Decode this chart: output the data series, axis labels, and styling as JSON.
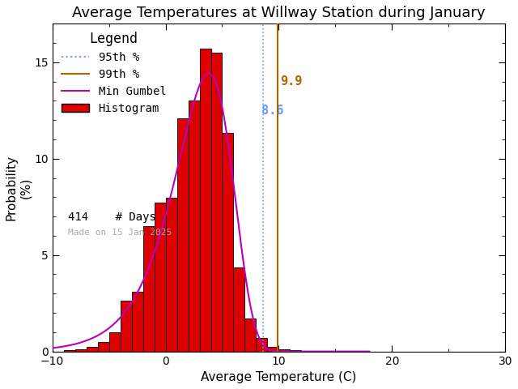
{
  "title": "Average Temperatures at Willway Station during January",
  "xlabel": "Average Temperature (C)",
  "ylabel": "Probability\n(%)",
  "xlim": [
    -10,
    30
  ],
  "ylim": [
    0,
    17
  ],
  "yticks": [
    0,
    5,
    10,
    15
  ],
  "xticks": [
    -10,
    0,
    10,
    20,
    30
  ],
  "bar_color": "#dd0000",
  "bar_edge_color": "#000000",
  "gumbel_color": "#bb00bb",
  "p95_value": 8.6,
  "p99_value": 9.9,
  "p95_color": "#6699ff",
  "p99_color": "#aa6600",
  "n_days": 414,
  "made_on": "Made on 15 Jan 2025",
  "bin_left_edges": [
    -9,
    -8,
    -7,
    -6,
    -5,
    -4,
    -3,
    -2,
    -1,
    0,
    1,
    2,
    3,
    4,
    5,
    6,
    7,
    8,
    9,
    10,
    11
  ],
  "bin_heights": [
    0.05,
    0.1,
    0.24,
    0.48,
    1.0,
    2.65,
    3.1,
    6.52,
    7.73,
    7.97,
    12.08,
    13.0,
    15.7,
    15.5,
    11.35,
    4.35,
    1.7,
    0.7,
    0.24,
    0.1,
    0.05
  ],
  "background_color": "#ffffff",
  "title_fontsize": 13,
  "axis_fontsize": 11,
  "legend_title_fontsize": 12,
  "legend_fontsize": 10,
  "gumbel_mu": 3.8,
  "gumbel_beta": 2.55
}
